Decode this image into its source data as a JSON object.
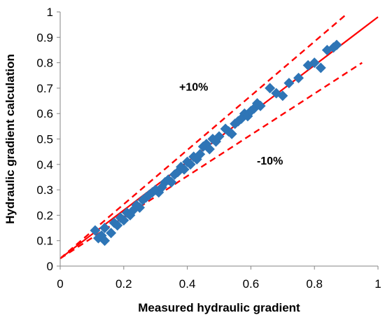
{
  "chart_data": {
    "type": "scatter",
    "title": "",
    "xlabel": "Measured hydraulic gradient",
    "ylabel": "Hydraulic gradient calculation",
    "xlim": [
      0,
      1
    ],
    "ylim": [
      0,
      1
    ],
    "xticks": [
      "0",
      "0.2",
      "0.4",
      "0.6",
      "0.8",
      "1"
    ],
    "yticks": [
      "0",
      "0.1",
      "0.2",
      "0.3",
      "0.4",
      "0.5",
      "0.6",
      "0.7",
      "0.8",
      "0.9",
      "1"
    ],
    "grid": false,
    "legend": "none",
    "colors": {
      "points": "#2E75B6",
      "fit_line": "#FF0000",
      "bounds": "#FF0000"
    },
    "points": [
      [
        0.11,
        0.14
      ],
      [
        0.12,
        0.11
      ],
      [
        0.13,
        0.12
      ],
      [
        0.14,
        0.1
      ],
      [
        0.14,
        0.15
      ],
      [
        0.16,
        0.13
      ],
      [
        0.17,
        0.17
      ],
      [
        0.18,
        0.16
      ],
      [
        0.19,
        0.19
      ],
      [
        0.2,
        0.18
      ],
      [
        0.21,
        0.21
      ],
      [
        0.22,
        0.2
      ],
      [
        0.23,
        0.22
      ],
      [
        0.24,
        0.24
      ],
      [
        0.25,
        0.23
      ],
      [
        0.26,
        0.26
      ],
      [
        0.27,
        0.27
      ],
      [
        0.28,
        0.28
      ],
      [
        0.29,
        0.29
      ],
      [
        0.3,
        0.3
      ],
      [
        0.31,
        0.29
      ],
      [
        0.32,
        0.31
      ],
      [
        0.33,
        0.33
      ],
      [
        0.34,
        0.34
      ],
      [
        0.35,
        0.33
      ],
      [
        0.36,
        0.36
      ],
      [
        0.37,
        0.37
      ],
      [
        0.38,
        0.39
      ],
      [
        0.39,
        0.38
      ],
      [
        0.4,
        0.41
      ],
      [
        0.41,
        0.4
      ],
      [
        0.42,
        0.43
      ],
      [
        0.43,
        0.42
      ],
      [
        0.44,
        0.44
      ],
      [
        0.45,
        0.47
      ],
      [
        0.46,
        0.48
      ],
      [
        0.47,
        0.46
      ],
      [
        0.48,
        0.5
      ],
      [
        0.49,
        0.49
      ],
      [
        0.5,
        0.51
      ],
      [
        0.52,
        0.54
      ],
      [
        0.53,
        0.53
      ],
      [
        0.54,
        0.52
      ],
      [
        0.55,
        0.56
      ],
      [
        0.56,
        0.57
      ],
      [
        0.57,
        0.58
      ],
      [
        0.58,
        0.6
      ],
      [
        0.59,
        0.59
      ],
      [
        0.6,
        0.61
      ],
      [
        0.61,
        0.62
      ],
      [
        0.62,
        0.64
      ],
      [
        0.63,
        0.63
      ],
      [
        0.66,
        0.7
      ],
      [
        0.68,
        0.68
      ],
      [
        0.7,
        0.67
      ],
      [
        0.72,
        0.72
      ],
      [
        0.75,
        0.74
      ],
      [
        0.78,
        0.79
      ],
      [
        0.8,
        0.8
      ],
      [
        0.82,
        0.78
      ],
      [
        0.84,
        0.85
      ],
      [
        0.86,
        0.86
      ],
      [
        0.87,
        0.87
      ]
    ],
    "fit_line": {
      "x": [
        0.0,
        1.0
      ],
      "y": [
        0.03,
        0.98
      ]
    },
    "upper_bound": {
      "x": [
        0.0,
        0.9
      ],
      "y": [
        0.03,
        0.99
      ]
    },
    "lower_bound": {
      "x": [
        0.0,
        0.95
      ],
      "y": [
        0.03,
        0.8
      ]
    },
    "annotations": [
      {
        "text": "+10%",
        "x": 0.42,
        "y": 0.69
      },
      {
        "text": "-10%",
        "x": 0.66,
        "y": 0.4
      }
    ]
  }
}
